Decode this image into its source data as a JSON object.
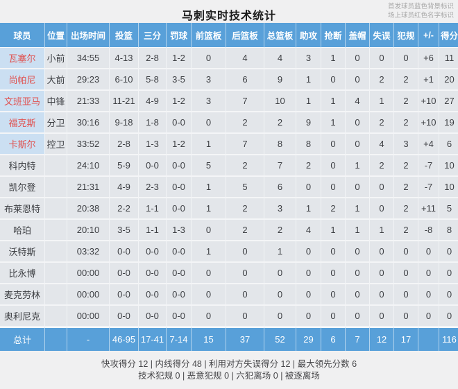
{
  "title": "马刺实时技术统计",
  "legend": {
    "starter_note": "首发球员蓝色背景标识",
    "oncourt_note": "场上球员红色名字标识"
  },
  "colors": {
    "header_blue": "#58a0d9",
    "starter_cell_bg": "#cbdff2",
    "oncourt_name_red": "#e0504e"
  },
  "table": {
    "columns": [
      "球员",
      "位置",
      "出场时间",
      "投篮",
      "三分",
      "罚球",
      "前篮板",
      "后篮板",
      "总篮板",
      "助攻",
      "抢断",
      "盖帽",
      "失误",
      "犯规",
      "+/-",
      "得分"
    ],
    "rows": [
      {
        "name": "瓦塞尔",
        "starter": true,
        "cells": [
          "小前",
          "34:55",
          "4-13",
          "2-8",
          "1-2",
          "0",
          "4",
          "4",
          "3",
          "1",
          "0",
          "0",
          "0",
          "+6",
          "11"
        ]
      },
      {
        "name": "尚帕尼",
        "starter": true,
        "cells": [
          "大前",
          "29:23",
          "6-10",
          "5-8",
          "3-5",
          "3",
          "6",
          "9",
          "1",
          "0",
          "0",
          "2",
          "2",
          "+1",
          "20"
        ]
      },
      {
        "name": "文班亚马",
        "starter": true,
        "cells": [
          "中锋",
          "21:33",
          "11-21",
          "4-9",
          "1-2",
          "3",
          "7",
          "10",
          "1",
          "1",
          "4",
          "1",
          "2",
          "+10",
          "27"
        ]
      },
      {
        "name": "福克斯",
        "starter": true,
        "cells": [
          "分卫",
          "30:16",
          "9-18",
          "1-8",
          "0-0",
          "0",
          "2",
          "2",
          "9",
          "1",
          "0",
          "2",
          "2",
          "+10",
          "19"
        ]
      },
      {
        "name": "卡斯尔",
        "starter": true,
        "cells": [
          "控卫",
          "33:52",
          "2-8",
          "1-3",
          "1-2",
          "1",
          "7",
          "8",
          "8",
          "0",
          "0",
          "4",
          "3",
          "+4",
          "6"
        ]
      },
      {
        "name": "科内特",
        "starter": false,
        "cells": [
          "",
          "24:10",
          "5-9",
          "0-0",
          "0-0",
          "5",
          "2",
          "7",
          "2",
          "0",
          "1",
          "2",
          "2",
          "-7",
          "10"
        ]
      },
      {
        "name": "凯尔登",
        "starter": false,
        "cells": [
          "",
          "21:31",
          "4-9",
          "2-3",
          "0-0",
          "1",
          "5",
          "6",
          "0",
          "0",
          "0",
          "0",
          "2",
          "-7",
          "10"
        ]
      },
      {
        "name": "布莱恩特",
        "starter": false,
        "cells": [
          "",
          "20:38",
          "2-2",
          "1-1",
          "0-0",
          "1",
          "2",
          "3",
          "1",
          "2",
          "1",
          "0",
          "2",
          "+11",
          "5"
        ]
      },
      {
        "name": "哈珀",
        "starter": false,
        "cells": [
          "",
          "20:10",
          "3-5",
          "1-1",
          "1-3",
          "0",
          "2",
          "2",
          "4",
          "1",
          "1",
          "1",
          "2",
          "-8",
          "8"
        ]
      },
      {
        "name": "沃特斯",
        "starter": false,
        "cells": [
          "",
          "03:32",
          "0-0",
          "0-0",
          "0-0",
          "1",
          "0",
          "1",
          "0",
          "0",
          "0",
          "0",
          "0",
          "0",
          "0"
        ]
      },
      {
        "name": "比永博",
        "starter": false,
        "cells": [
          "",
          "00:00",
          "0-0",
          "0-0",
          "0-0",
          "0",
          "0",
          "0",
          "0",
          "0",
          "0",
          "0",
          "0",
          "0",
          "0"
        ]
      },
      {
        "name": "麦克劳林",
        "starter": false,
        "cells": [
          "",
          "00:00",
          "0-0",
          "0-0",
          "0-0",
          "0",
          "0",
          "0",
          "0",
          "0",
          "0",
          "0",
          "0",
          "0",
          "0"
        ]
      },
      {
        "name": "奥利尼克",
        "starter": false,
        "cells": [
          "",
          "00:00",
          "0-0",
          "0-0",
          "0-0",
          "0",
          "0",
          "0",
          "0",
          "0",
          "0",
          "0",
          "0",
          "0",
          "0"
        ]
      }
    ],
    "total": {
      "name": "总计",
      "cells": [
        "",
        "-",
        "46-95",
        "17-41",
        "7-14",
        "15",
        "37",
        "52",
        "29",
        "6",
        "7",
        "12",
        "17",
        "",
        "116"
      ]
    }
  },
  "footer": {
    "line1": "快攻得分 12 | 内线得分 48 | 利用对方失误得分 12 | 最大领先分数 6",
    "line2": "技术犯规 0 | 恶意犯规 0 | 六犯离场 0 | 被逐离场"
  }
}
